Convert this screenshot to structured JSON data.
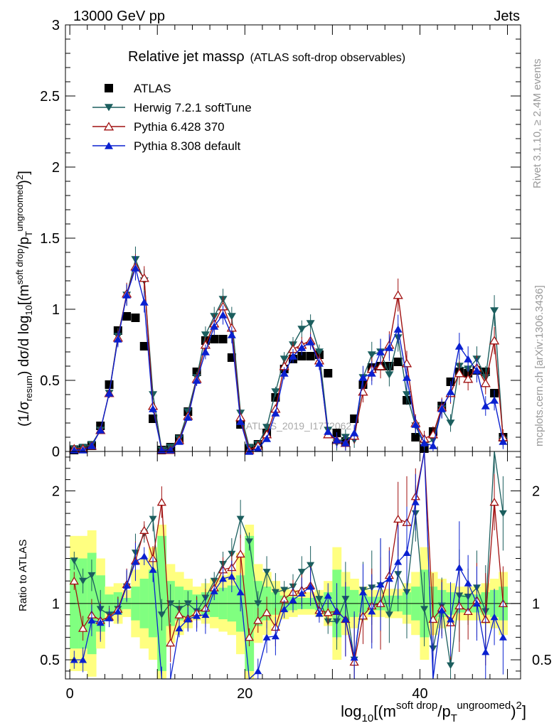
{
  "header": {
    "left": "13000 GeV pp",
    "right": "Jets"
  },
  "side": {
    "rivet": "Rivet 3.1.10, ≥ 2.4M events",
    "mcplots": "mcplots.cern.ch [arXiv:1306.3436]"
  },
  "chart_data": [
    {
      "type": "scatter",
      "title": "Relative jet massρ",
      "subtitle": "(ATLAS soft-drop observables)",
      "ylabel": "(1/σresum) dσ/d log10[(m soft drop/pT ungroomed)2]",
      "watermark": "ATLAS_2019_I1772062",
      "xlim": [
        -0.5,
        51.5
      ],
      "ylim": [
        0,
        3
      ],
      "yticks": [
        0,
        0.5,
        1,
        1.5,
        2,
        2.5,
        3
      ],
      "x": [
        0.5,
        1.5,
        2.5,
        3.5,
        4.5,
        5.5,
        6.5,
        7.5,
        8.5,
        9.5,
        10.5,
        11.5,
        12.5,
        13.5,
        14.5,
        15.5,
        16.5,
        17.5,
        18.5,
        19.5,
        20.5,
        21.5,
        22.5,
        23.5,
        24.5,
        25.5,
        26.5,
        27.5,
        28.5,
        29.5,
        30.5,
        31.5,
        32.5,
        33.5,
        34.5,
        35.5,
        36.5,
        37.5,
        38.5,
        39.5,
        40.5,
        41.5,
        42.5,
        43.5,
        44.5,
        45.5,
        46.5,
        47.5,
        48.5,
        49.5
      ],
      "series": [
        {
          "name": "ATLAS",
          "color": "#000000",
          "marker": "square",
          "values": [
            0.01,
            0.02,
            0.04,
            0.18,
            0.47,
            0.85,
            0.95,
            0.94,
            0.74,
            0.23,
            0.01,
            0.03,
            0.09,
            0.28,
            0.56,
            0.78,
            0.79,
            0.79,
            0.66,
            0.19,
            0.02,
            0.05,
            0.13,
            0.38,
            0.58,
            0.65,
            0.67,
            0.67,
            0.68,
            0.55,
            0.13,
            0.07,
            0.23,
            0.47,
            0.59,
            0.6,
            0.6,
            0.63,
            0.36,
            0.1,
            0.02,
            0.14,
            0.32,
            0.49,
            0.56,
            0.55,
            0.57,
            0.56,
            0.41,
            0.1
          ]
        },
        {
          "name": "Herwig 7.2.1 softTune",
          "color": "#1b5e5e",
          "marker": "triangle-down",
          "values": [
            0.02,
            0.03,
            0.05,
            0.15,
            0.41,
            0.81,
            1.1,
            1.35,
            1.2,
            0.4,
            0.01,
            0.03,
            0.09,
            0.28,
            0.52,
            0.82,
            0.95,
            1.07,
            0.95,
            0.27,
            0.03,
            0.05,
            0.17,
            0.42,
            0.65,
            0.75,
            0.86,
            0.9,
            0.7,
            0.15,
            0.06,
            0.1,
            0.08,
            0.52,
            0.68,
            0.7,
            0.54,
            0.8,
            0.4,
            0.18,
            0.05,
            0.08,
            0.3,
            0.2,
            0.6,
            0.58,
            0.65,
            0.52,
            0.99,
            0.08
          ]
        },
        {
          "name": "Pythia 6.428 370",
          "color": "#a01010",
          "marker": "triangle-up-open",
          "values": [
            0.02,
            0.02,
            0.04,
            0.15,
            0.41,
            0.8,
            1.11,
            1.3,
            1.22,
            0.32,
            0.01,
            0.01,
            0.08,
            0.25,
            0.51,
            0.75,
            0.9,
            1.02,
            0.87,
            0.24,
            0.01,
            0.04,
            0.12,
            0.3,
            0.6,
            0.72,
            0.75,
            0.78,
            0.64,
            0.12,
            0.08,
            0.06,
            0.11,
            0.42,
            0.58,
            0.6,
            0.75,
            1.1,
            0.62,
            0.2,
            0.09,
            0.12,
            0.31,
            0.41,
            0.55,
            0.51,
            0.59,
            0.48,
            0.78,
            0.1
          ]
        },
        {
          "name": "Pythia 8.308 default",
          "color": "#0a20d0",
          "marker": "triangle-up",
          "values": [
            0.01,
            0.01,
            0.04,
            0.15,
            0.41,
            0.79,
            1.1,
            1.29,
            1.05,
            0.3,
            0.01,
            0.01,
            0.07,
            0.24,
            0.5,
            0.7,
            0.88,
            0.96,
            0.82,
            0.21,
            0.0,
            0.02,
            0.09,
            0.27,
            0.55,
            0.67,
            0.73,
            0.77,
            0.62,
            0.14,
            0.08,
            0.06,
            0.13,
            0.52,
            0.55,
            0.7,
            0.73,
            0.86,
            0.52,
            0.19,
            0.06,
            0.04,
            0.3,
            0.42,
            0.74,
            0.65,
            0.57,
            0.32,
            0.36,
            0.07
          ]
        }
      ]
    },
    {
      "type": "line",
      "ylabel": "Ratio to ATLAS",
      "xlabel": "log10[(m soft drop/pT ungroomed)2]",
      "xlim": [
        -0.5,
        51.5
      ],
      "ylim": [
        0.33,
        2.35
      ],
      "yticks": [
        0.5,
        1,
        2
      ],
      "xticks": [
        0,
        20,
        40
      ],
      "x": [
        0.5,
        1.5,
        2.5,
        3.5,
        4.5,
        5.5,
        6.5,
        7.5,
        8.5,
        9.5,
        10.5,
        11.5,
        12.5,
        13.5,
        14.5,
        15.5,
        16.5,
        17.5,
        18.5,
        19.5,
        20.5,
        21.5,
        22.5,
        23.5,
        24.5,
        25.5,
        26.5,
        27.5,
        28.5,
        29.5,
        30.5,
        31.5,
        32.5,
        33.5,
        34.5,
        35.5,
        36.5,
        37.5,
        38.5,
        39.5,
        40.5,
        41.5,
        42.5,
        43.5,
        44.5,
        45.5,
        46.5,
        47.5,
        48.5,
        49.5
      ],
      "band_inner": [
        0.6,
        0.6,
        0.55,
        0.75,
        0.92,
        0.9,
        0.95,
        0.85,
        0.78,
        0.7,
        0.4,
        0.8,
        0.85,
        0.88,
        0.92,
        0.9,
        0.88,
        0.86,
        0.84,
        0.75,
        0.4,
        0.8,
        0.85,
        0.9,
        0.93,
        0.94,
        0.95,
        0.95,
        0.94,
        0.9,
        0.7,
        0.85,
        0.88,
        0.92,
        0.94,
        0.94,
        0.93,
        0.93,
        0.9,
        0.85,
        0.7,
        0.85,
        0.88,
        0.9,
        0.92,
        0.92,
        0.92,
        0.9,
        0.88,
        0.85
      ],
      "band_inner_hi": [
        1.4,
        1.4,
        1.45,
        1.25,
        1.08,
        1.1,
        1.05,
        1.15,
        1.22,
        1.3,
        1.6,
        1.2,
        1.15,
        1.12,
        1.08,
        1.1,
        1.12,
        1.14,
        1.16,
        1.25,
        1.6,
        1.2,
        1.15,
        1.1,
        1.07,
        1.06,
        1.05,
        1.05,
        1.06,
        1.1,
        1.3,
        1.15,
        1.12,
        1.08,
        1.06,
        1.06,
        1.07,
        1.07,
        1.1,
        1.15,
        1.3,
        1.15,
        1.12,
        1.1,
        1.08,
        1.08,
        1.08,
        1.1,
        1.12,
        1.15
      ],
      "band_outer": [
        0.4,
        0.4,
        0.35,
        0.6,
        0.85,
        0.82,
        0.88,
        0.7,
        0.6,
        0.5,
        0.3,
        0.65,
        0.72,
        0.78,
        0.85,
        0.82,
        0.78,
        0.75,
        0.72,
        0.55,
        0.3,
        0.65,
        0.72,
        0.8,
        0.86,
        0.88,
        0.9,
        0.9,
        0.88,
        0.8,
        0.5,
        0.72,
        0.78,
        0.85,
        0.88,
        0.88,
        0.87,
        0.87,
        0.82,
        0.72,
        0.5,
        0.72,
        0.78,
        0.82,
        0.85,
        0.85,
        0.85,
        0.82,
        0.78,
        0.72
      ],
      "band_outer_hi": [
        1.6,
        1.6,
        1.65,
        1.4,
        1.15,
        1.18,
        1.12,
        1.3,
        1.4,
        1.5,
        1.7,
        1.35,
        1.28,
        1.22,
        1.15,
        1.18,
        1.22,
        1.25,
        1.28,
        1.45,
        1.7,
        1.35,
        1.28,
        1.2,
        1.14,
        1.12,
        1.1,
        1.1,
        1.12,
        1.2,
        1.5,
        1.28,
        1.22,
        1.15,
        1.12,
        1.12,
        1.13,
        1.13,
        1.18,
        1.28,
        1.5,
        1.28,
        1.22,
        1.18,
        1.15,
        1.15,
        1.15,
        1.18,
        1.22,
        1.28
      ],
      "series": [
        {
          "name": "Herwig 7.2.1 softTune",
          "color": "#1b5e5e",
          "marker": "triangle-down",
          "values": [
            1.38,
            1.2,
            1.25,
            0.95,
            0.9,
            0.95,
            1.15,
            1.45,
            1.62,
            1.75,
            0.9,
            1.0,
            0.95,
            1.0,
            0.93,
            1.05,
            1.2,
            1.35,
            1.44,
            1.75,
            1.55,
            1.0,
            1.28,
            1.1,
            1.12,
            1.15,
            1.28,
            1.34,
            1.04,
            0.84,
            0.84,
            1.04,
            0.5,
            1.12,
            1.14,
            1.16,
            0.9,
            1.26,
            1.1,
            1.8,
            0.95,
            0.6,
            0.98,
            0.45,
            1.07,
            1.06,
            1.14,
            0.93,
            2.4,
            1.8
          ]
        },
        {
          "name": "Pythia 6.428 370",
          "color": "#a01010",
          "marker": "triangle-up-open",
          "values": [
            1.2,
            0.78,
            0.9,
            0.85,
            0.88,
            0.95,
            1.17,
            1.38,
            1.65,
            1.4,
            1.9,
            0.65,
            0.9,
            0.87,
            0.92,
            0.96,
            1.14,
            1.3,
            1.32,
            1.44,
            0.7,
            0.85,
            0.92,
            0.79,
            1.04,
            1.1,
            1.12,
            1.16,
            0.94,
            0.92,
            0.93,
            0.86,
            0.48,
            0.89,
            0.98,
            1.0,
            1.25,
            1.75,
            1.72,
            1.95,
            3.0,
            0.86,
            0.96,
            0.83,
            0.98,
            0.93,
            1.03,
            0.86,
            1.9,
            1.0
          ]
        },
        {
          "name": "Pythia 8.308 default",
          "color": "#0a20d0",
          "marker": "triangle-up",
          "values": [
            0.5,
            0.5,
            0.85,
            0.83,
            0.87,
            0.93,
            1.16,
            1.37,
            1.42,
            1.3,
            0.3,
            0.3,
            0.78,
            0.86,
            0.89,
            0.9,
            1.11,
            1.22,
            1.24,
            1.1,
            0.0,
            0.4,
            0.7,
            0.71,
            0.95,
            1.03,
            1.09,
            1.15,
            0.91,
            1.07,
            0.93,
            0.86,
            0.52,
            1.1,
            0.93,
            1.17,
            1.22,
            1.37,
            1.45,
            1.9,
            2.9,
            0.3,
            0.94,
            0.86,
            1.32,
            1.18,
            1.0,
            0.57,
            0.88,
            0.7
          ]
        }
      ]
    }
  ]
}
